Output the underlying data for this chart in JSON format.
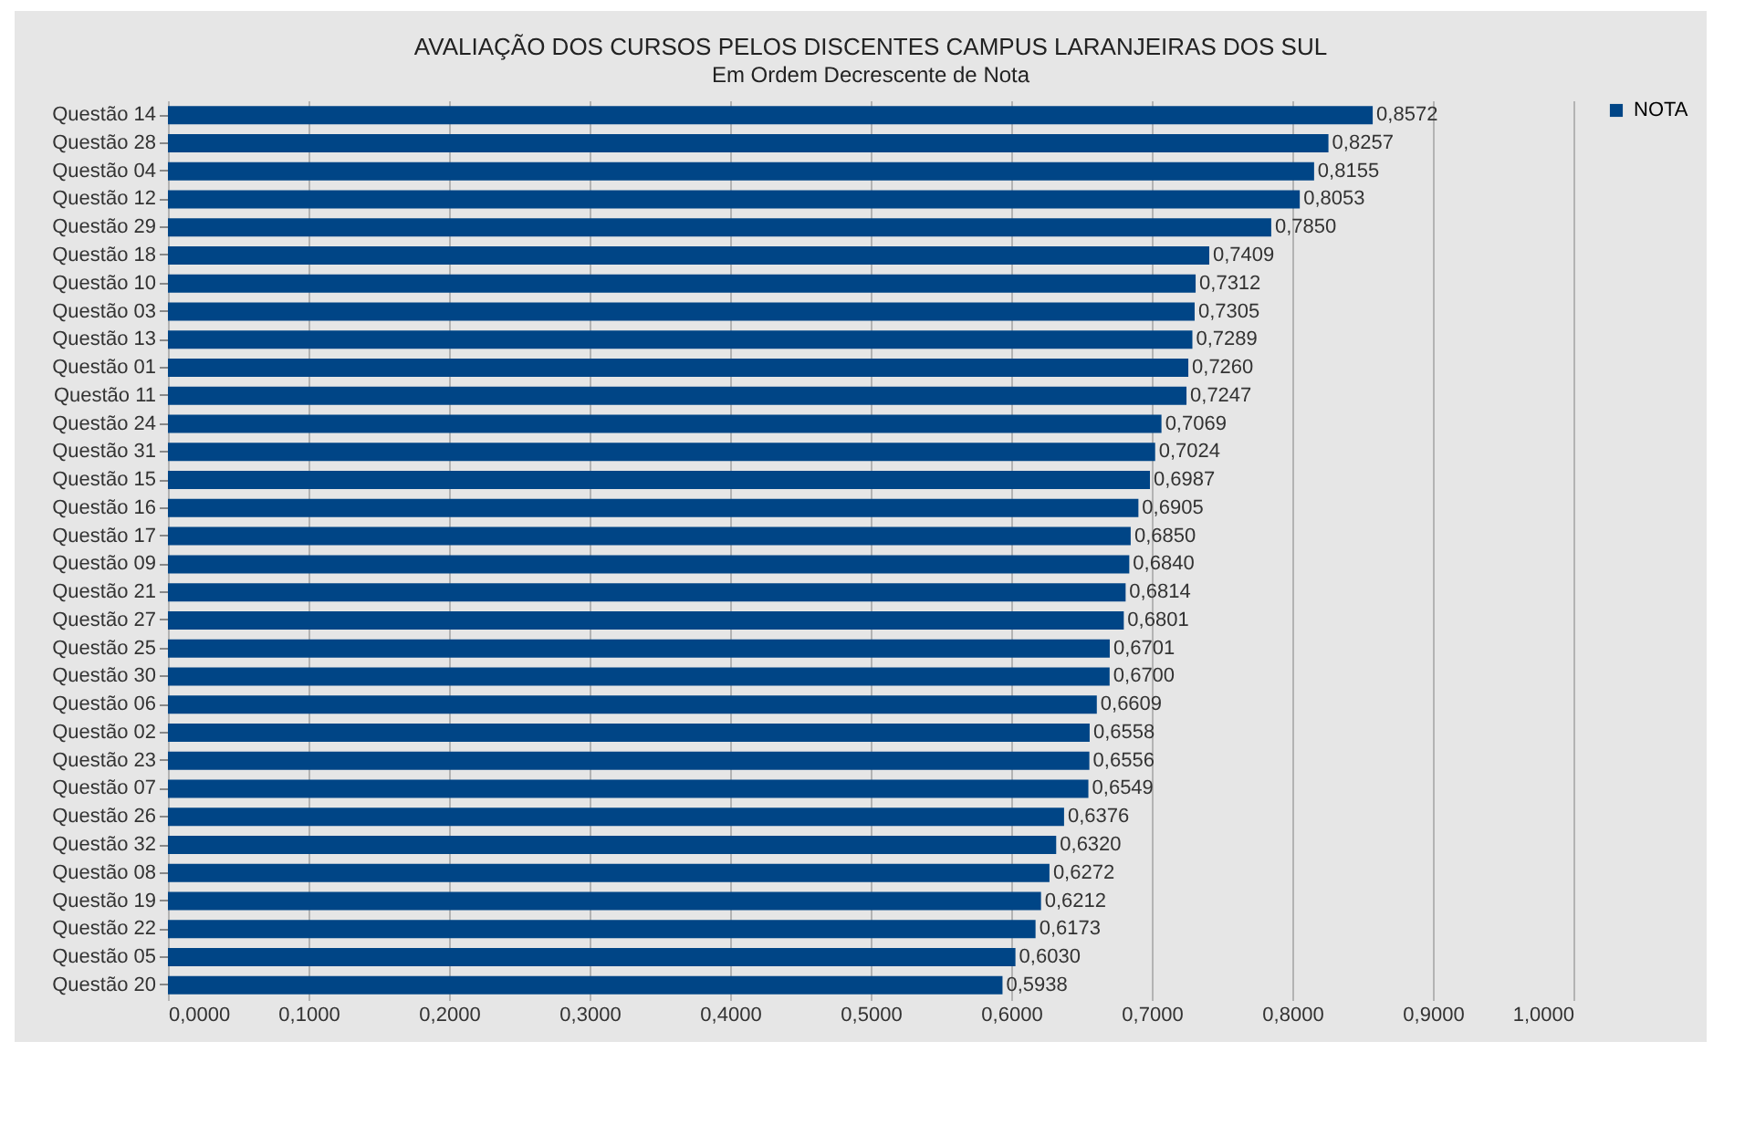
{
  "chart_data": {
    "type": "bar",
    "orientation": "horizontal",
    "title": "AVALIAÇÃO DOS CURSOS PELOS DISCENTES CAMPUS LARANJEIRAS DOS SUL",
    "subtitle": "Em Ordem Decrescente de Nota",
    "categories": [
      "Questão 14",
      "Questão 28",
      "Questão 04",
      "Questão 12",
      "Questão 29",
      "Questão 18",
      "Questão 10",
      "Questão 03",
      "Questão 13",
      "Questão 01",
      "Questão 11",
      "Questão 24",
      "Questão 31",
      "Questão 15",
      "Questão 16",
      "Questão 17",
      "Questão 09",
      "Questão 21",
      "Questão 27",
      "Questão 25",
      "Questão 30",
      "Questão 06",
      "Questão 02",
      "Questão 23",
      "Questão 07",
      "Questão 26",
      "Questão 32",
      "Questão 08",
      "Questão 19",
      "Questão 22",
      "Questão 05",
      "Questão 20"
    ],
    "series": [
      {
        "name": "NOTA",
        "color": "#004586",
        "values": [
          0.8572,
          0.8257,
          0.8155,
          0.8053,
          0.785,
          0.7409,
          0.7312,
          0.7305,
          0.7289,
          0.726,
          0.7247,
          0.7069,
          0.7024,
          0.6987,
          0.6905,
          0.685,
          0.684,
          0.6814,
          0.6801,
          0.6701,
          0.67,
          0.6609,
          0.6558,
          0.6556,
          0.6549,
          0.6376,
          0.632,
          0.6272,
          0.6212,
          0.6173,
          0.603,
          0.5938
        ]
      }
    ],
    "value_labels": [
      "0,8572",
      "0,8257",
      "0,8155",
      "0,8053",
      "0,7850",
      "0,7409",
      "0,7312",
      "0,7305",
      "0,7289",
      "0,7260",
      "0,7247",
      "0,7069",
      "0,7024",
      "0,6987",
      "0,6905",
      "0,6850",
      "0,6840",
      "0,6814",
      "0,6801",
      "0,6701",
      "0,6700",
      "0,6609",
      "0,6558",
      "0,6556",
      "0,6549",
      "0,6376",
      "0,6320",
      "0,6272",
      "0,6212",
      "0,6173",
      "0,6030",
      "0,5938"
    ],
    "xlim": [
      0,
      1
    ],
    "xticks": [
      {
        "value": 0,
        "label": "0,0000"
      },
      {
        "value": 0.1,
        "label": "0,1000"
      },
      {
        "value": 0.2,
        "label": "0,2000"
      },
      {
        "value": 0.3,
        "label": "0,3000"
      },
      {
        "value": 0.4,
        "label": "0,4000"
      },
      {
        "value": 0.5,
        "label": "0,5000"
      },
      {
        "value": 0.6,
        "label": "0,6000"
      },
      {
        "value": 0.7,
        "label": "0,7000"
      },
      {
        "value": 0.8,
        "label": "0,8000"
      },
      {
        "value": 0.9,
        "label": "0,9000"
      },
      {
        "value": 1,
        "label": "1,0000"
      }
    ],
    "grid": "x",
    "legend": "right"
  }
}
